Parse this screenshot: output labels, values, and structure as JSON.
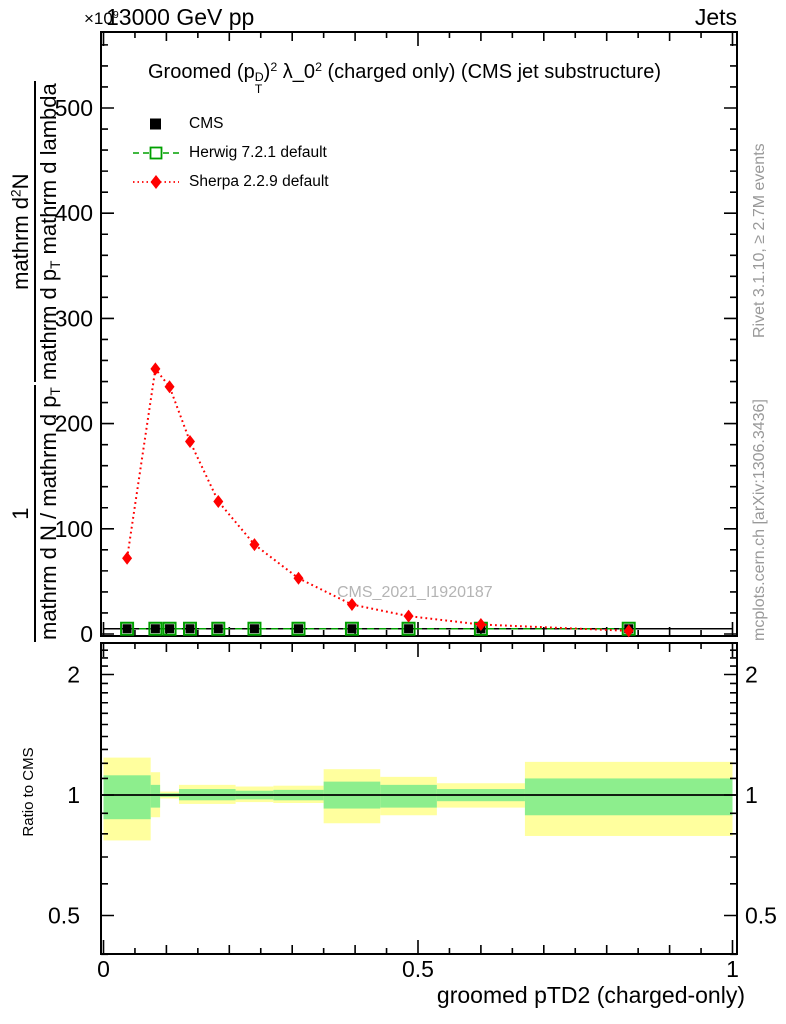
{
  "header": {
    "scale_factor_base": "×10",
    "scale_factor_power": "9",
    "beam_label": "13000 GeV pp",
    "corner_label": "Jets"
  },
  "title_segments": [
    {
      "t": "Groomed (p"
    },
    {
      "s": "stack",
      "top": "D",
      "bottom": "T"
    },
    {
      "t": ")"
    },
    {
      "t": "2",
      "s": "sup"
    },
    {
      "t": " λ_0"
    },
    {
      "t": "2",
      "s": "sup"
    },
    {
      "t": "  (charged only) (CMS jet substructure)"
    }
  ],
  "legend": [
    {
      "label": "CMS",
      "marker": "filled-square",
      "color": "#000000",
      "line": "none"
    },
    {
      "label": "Herwig 7.2.1 default",
      "marker": "open-square",
      "color": "#00a000",
      "line": "dashed"
    },
    {
      "label": "Sherpa 2.2.9 default",
      "marker": "filled-diamond",
      "color": "#ff0000",
      "line": "dotted"
    }
  ],
  "watermark": "CMS_2021_I1920187",
  "side_notes": {
    "top_right": "Rivet 3.1.10, ≥ 2.7M events",
    "bottom_right": "mcplots.cern.ch [arXiv:1306.3436]"
  },
  "ylabel_fractions": [
    {
      "num": [
        {
          "t": "1"
        }
      ],
      "den": [
        {
          "t": "mathrm d N / mathrm d p"
        },
        {
          "t": "T",
          "s": "sub"
        }
      ]
    },
    {
      "num": [
        {
          "t": "mathrm d"
        },
        {
          "t": "2",
          "s": "sup"
        },
        {
          "t": "N"
        }
      ],
      "den": [
        {
          "t": "mathrm d p"
        },
        {
          "t": "T",
          "s": "sub"
        },
        {
          "t": " mathrm d lambda"
        }
      ]
    }
  ],
  "ratio_ylabel": "Ratio to CMS",
  "chart_data": {
    "type": "line",
    "title": "Groomed (p_T^D)^2 λ_0^2 (charged only) (CMS jet substructure)",
    "xlabel": "groomed pTD2 (charged-only)",
    "ylabel": "1 / (mathrm d N / mathrm d p_T) · mathrm d^2 N / (mathrm d p_T mathrm d lambda)",
    "y_scale_factor": "×10^9",
    "x_range": [
      0,
      1
    ],
    "y_range": [
      0,
      575
    ],
    "grid": false,
    "legend_position": "top-left-inside",
    "x_ticks": [
      {
        "v": 0,
        "label": "0"
      },
      {
        "v": 0.5,
        "label": "0.5"
      },
      {
        "v": 1,
        "label": "1"
      }
    ],
    "x_minor_step": 0.05,
    "y_ticks": [
      {
        "v": 0,
        "label": "0"
      },
      {
        "v": 100,
        "label": "100"
      },
      {
        "v": 200,
        "label": "200"
      },
      {
        "v": 300,
        "label": "300"
      },
      {
        "v": 400,
        "label": "400"
      },
      {
        "v": 500,
        "label": "500"
      }
    ],
    "y_minor_step": 20,
    "ratio_panel": {
      "scale": "log",
      "range": [
        0.4,
        2.4
      ],
      "ticks": [
        {
          "v": 0.5,
          "label": "0.5"
        },
        {
          "v": 1,
          "label": "1"
        },
        {
          "v": 2,
          "label": "2"
        }
      ],
      "reference_line": 1.0
    },
    "bin_edges": [
      0,
      0.075,
      0.09,
      0.12,
      0.155,
      0.21,
      0.27,
      0.35,
      0.44,
      0.53,
      0.67,
      1.0
    ],
    "x": [
      0.0375,
      0.0825,
      0.105,
      0.1375,
      0.1825,
      0.24,
      0.31,
      0.395,
      0.485,
      0.6,
      0.835
    ],
    "series": [
      {
        "name": "CMS",
        "color": "#000000",
        "marker": "filled-square",
        "line": "none",
        "values": [
          5,
          5,
          5,
          5,
          5,
          5,
          5,
          5,
          5,
          5,
          5
        ]
      },
      {
        "name": "Herwig 7.2.1 default",
        "color": "#00a000",
        "marker": "open-square",
        "line": "dashed",
        "values": [
          5,
          5,
          5,
          5,
          5,
          5,
          5,
          5,
          5,
          5,
          5
        ]
      },
      {
        "name": "Sherpa 2.2.9 default",
        "color": "#ff0000",
        "marker": "filled-diamond",
        "line": "dotted",
        "values": [
          72,
          252,
          235,
          183,
          126,
          85,
          53,
          28,
          17,
          9,
          3
        ]
      }
    ],
    "ratio_bands": {
      "yellow_color": "#ffff9e",
      "green_color": "#8dee8d",
      "yellow_hi": [
        1.24,
        1.14,
        1.02,
        1.06,
        1.06,
        1.05,
        1.055,
        1.16,
        1.11,
        1.07,
        1.21
      ],
      "yellow_lo": [
        0.77,
        0.88,
        0.98,
        0.95,
        0.95,
        0.96,
        0.955,
        0.85,
        0.89,
        0.93,
        0.79
      ],
      "green_hi": [
        1.12,
        1.06,
        1.01,
        1.035,
        1.035,
        1.025,
        1.03,
        1.08,
        1.06,
        1.035,
        1.1
      ],
      "green_lo": [
        0.87,
        0.93,
        0.99,
        0.97,
        0.97,
        0.975,
        0.97,
        0.925,
        0.93,
        0.965,
        0.89
      ]
    }
  }
}
